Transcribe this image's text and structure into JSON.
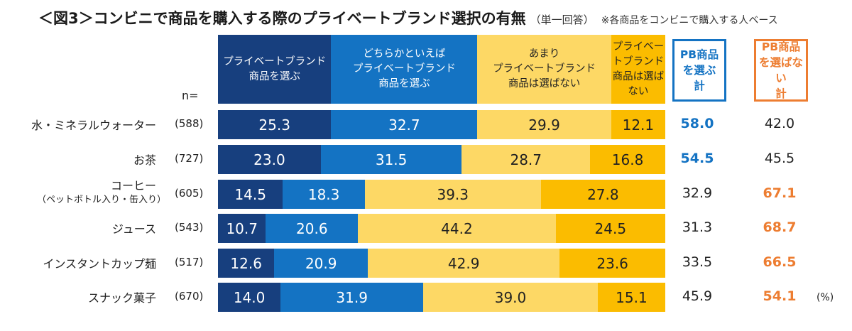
{
  "title": "＜図3＞コンビニで商品を購入する際のプライベートブランド選択の有無",
  "subtitle": "（単一回答）",
  "note": "※各商品をコンビニで購入する人ベース",
  "n_label": "n=",
  "unit": "(%)",
  "colors": {
    "pb_select": "#173f7e",
    "pb_lean": "#1473c3",
    "pb_lean_not": "#fdd865",
    "pb_not": "#fbbc00",
    "blue_total": "#1473c3",
    "orange_total": "#ed7d31"
  },
  "chart_data": {
    "type": "bar",
    "stacked": true,
    "orientation": "horizontal",
    "title": "＜図3＞コンビニで商品を購入する際のプライベートブランド選択の有無",
    "series": [
      {
        "name": "プライベートブランド\n商品を選ぶ",
        "values": [
          25.3,
          23.0,
          14.5,
          10.7,
          12.6,
          14.0
        ]
      },
      {
        "name": "どちらかといえば\nプライベートブランド\n商品を選ぶ",
        "values": [
          32.7,
          31.5,
          18.3,
          20.6,
          20.9,
          31.9
        ]
      },
      {
        "name": "あまり\nプライベートブランド\n商品は選ばない",
        "values": [
          29.9,
          28.7,
          39.3,
          44.2,
          42.9,
          39.0
        ]
      },
      {
        "name": "プライベートブランド\n商品は選ばない",
        "values": [
          12.1,
          16.8,
          27.8,
          24.5,
          23.6,
          15.1
        ]
      }
    ],
    "categories": [
      {
        "name": "水・ミネラルウォーター",
        "sub": "",
        "n": "(588)"
      },
      {
        "name": "お茶",
        "sub": "",
        "n": "(727)"
      },
      {
        "name": "コーヒー",
        "sub": "（ペットボトル入り・缶入り）",
        "n": "(605)"
      },
      {
        "name": "ジュース",
        "sub": "",
        "n": "(543)"
      },
      {
        "name": "インスタントカップ麺",
        "sub": "",
        "n": "(517)"
      },
      {
        "name": "スナック菓子",
        "sub": "",
        "n": "(670)"
      }
    ],
    "labels": [
      [
        "25.3",
        "32.7",
        "29.9",
        "12.1"
      ],
      [
        "23.0",
        "31.5",
        "28.7",
        "16.8"
      ],
      [
        "14.5",
        "18.3",
        "39.3",
        "27.8"
      ],
      [
        "10.7",
        "20.6",
        "44.2",
        "24.5"
      ],
      [
        "12.6",
        "20.9",
        "42.9",
        "23.6"
      ],
      [
        "14.0",
        "31.9",
        "39.0",
        "15.1"
      ]
    ],
    "totals": {
      "select_header": "PB商品\nを選ぶ\n計",
      "not_header": "PB商品\nを選ばない\n計",
      "select": [
        "58.0",
        "54.5",
        "32.9",
        "31.3",
        "33.5",
        "45.9"
      ],
      "not": [
        "42.0",
        "45.5",
        "67.1",
        "68.7",
        "66.5",
        "54.1"
      ],
      "select_highlight": [
        true,
        true,
        false,
        false,
        false,
        false
      ],
      "not_highlight": [
        false,
        false,
        true,
        true,
        true,
        true
      ]
    }
  }
}
